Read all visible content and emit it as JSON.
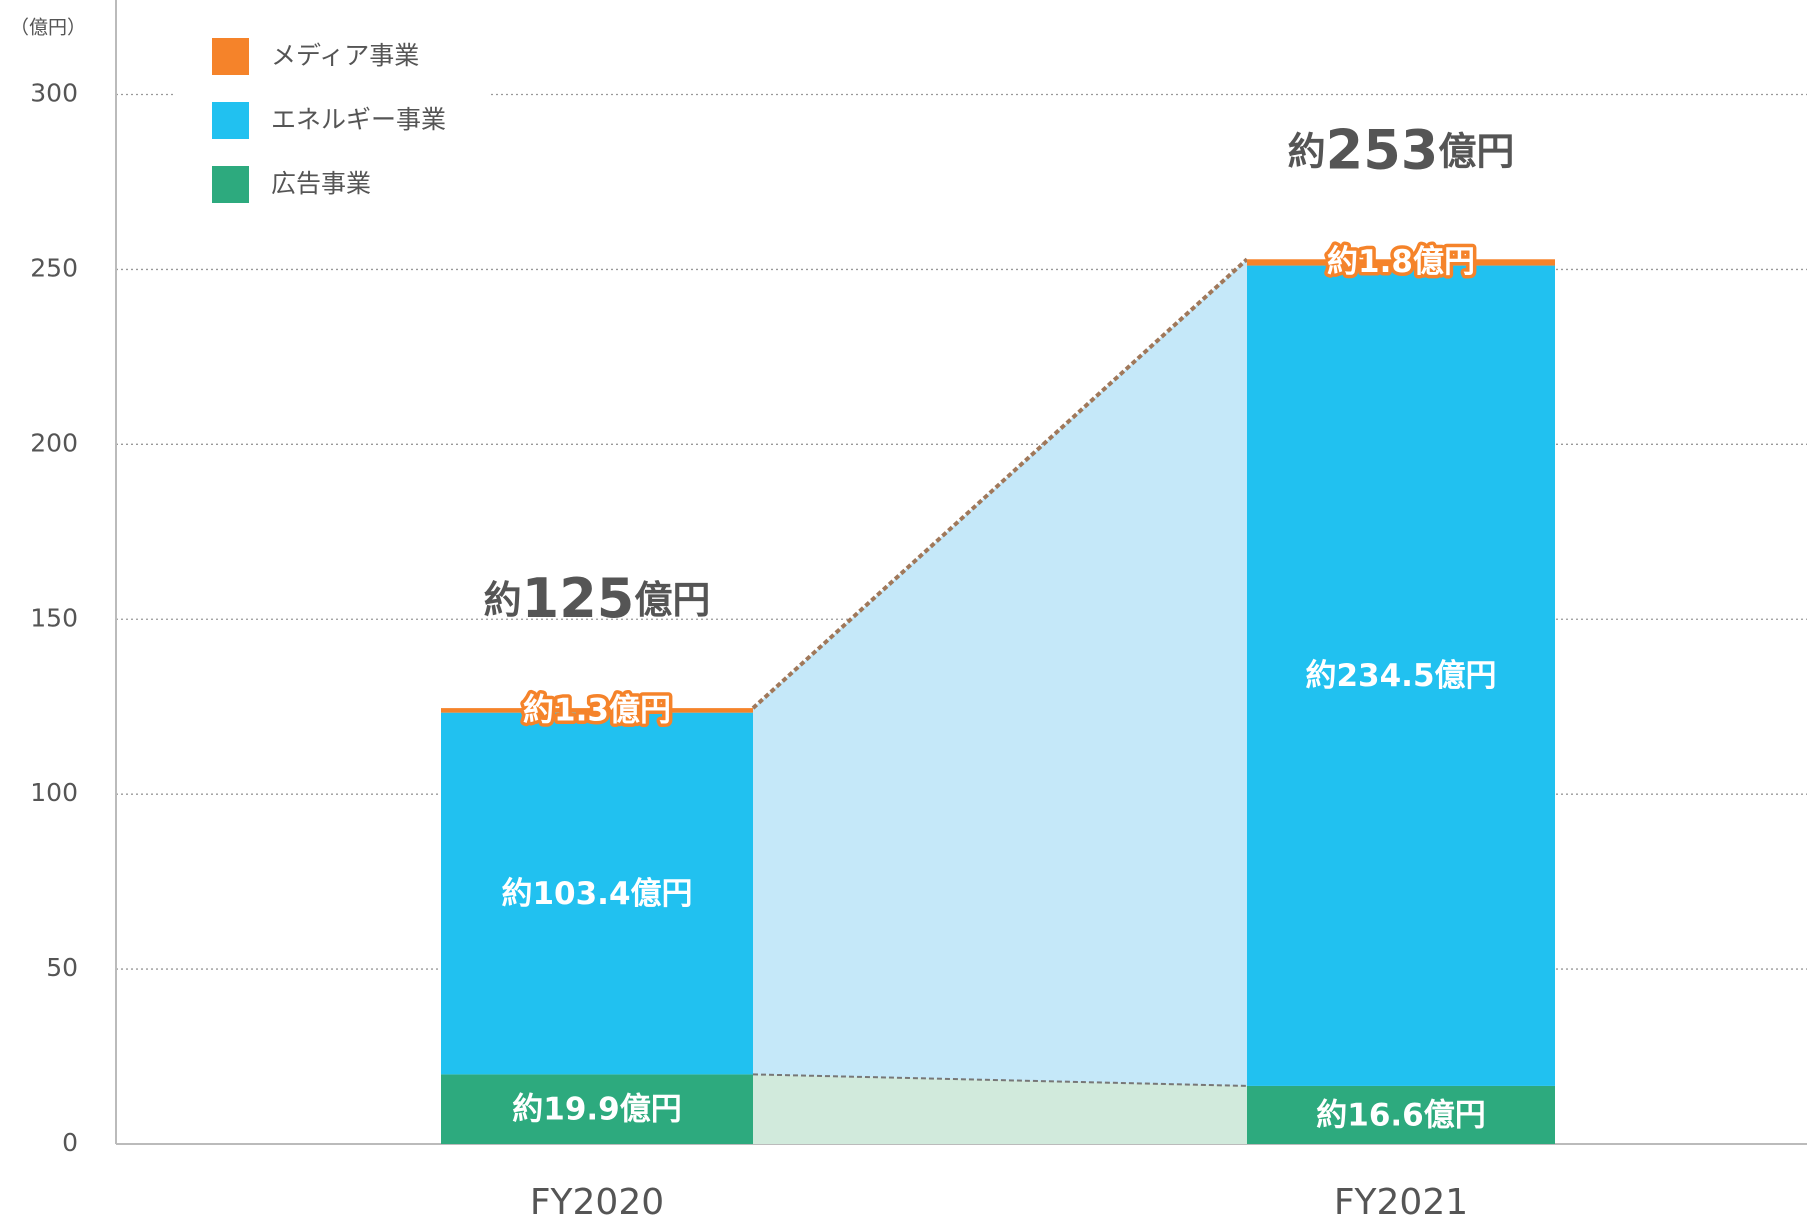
{
  "chart_data": {
    "type": "stacked_bar",
    "y_unit": "（億円）",
    "categories": [
      "FY2020",
      "FY2021"
    ],
    "series": [
      {
        "name": "広告事業",
        "color": "#2daa7e",
        "values": [
          19.9,
          16.6
        ],
        "value_labels": [
          "約19.9億円",
          "約16.6億円"
        ]
      },
      {
        "name": "エネルギー事業",
        "color": "#21c1f0",
        "values": [
          103.4,
          234.5
        ],
        "value_labels": [
          "約103.4億円",
          "約234.5億円"
        ]
      },
      {
        "name": "メディア事業",
        "color": "#f5832a",
        "values": [
          1.3,
          1.8
        ],
        "value_labels": [
          "約1.3億円",
          "約1.8億円"
        ]
      }
    ],
    "totals": {
      "values": [
        125,
        253
      ],
      "value_labels": [
        "約125億円",
        "約253億円"
      ]
    },
    "ylim": [
      0,
      300
    ],
    "yticks": [
      0,
      50,
      100,
      150,
      200,
      250,
      300
    ],
    "grid": true,
    "legend": "top-left"
  }
}
